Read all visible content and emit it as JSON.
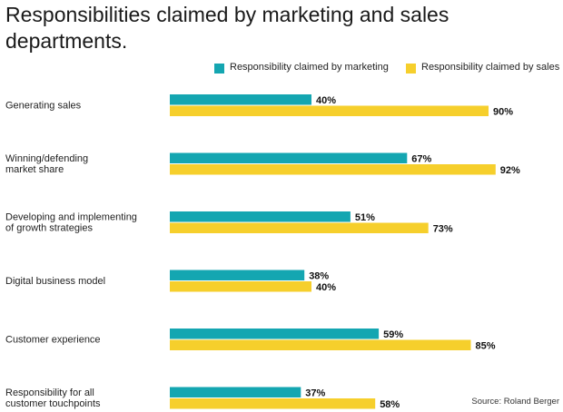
{
  "title": "Responsibilities claimed by marketing and sales departments.",
  "source": "Source: Roland Berger",
  "colors": {
    "marketing": "#14a6b1",
    "sales": "#f6cf2c"
  },
  "chart_data": {
    "type": "bar",
    "orientation": "horizontal",
    "title": "Responsibilities claimed by marketing and sales departments.",
    "categories": [
      [
        "Generating sales"
      ],
      [
        "Winning/defending",
        "market share"
      ],
      [
        "Developing and implementing",
        "of growth strategies"
      ],
      [
        "Digital business model"
      ],
      [
        "Customer experience"
      ],
      [
        "Responsibility for all",
        "customer touchpoints"
      ]
    ],
    "series": [
      {
        "name": "Responsibility claimed by marketing",
        "values": [
          40,
          67,
          51,
          38,
          59,
          37
        ],
        "color": "#14a6b1"
      },
      {
        "name": "Responsibility claimed by sales",
        "values": [
          90,
          92,
          73,
          40,
          85,
          58
        ],
        "color": "#f6cf2c"
      }
    ],
    "value_suffix": "%",
    "xlim": [
      0,
      100
    ],
    "legend_position": "top-right",
    "grid": false
  }
}
